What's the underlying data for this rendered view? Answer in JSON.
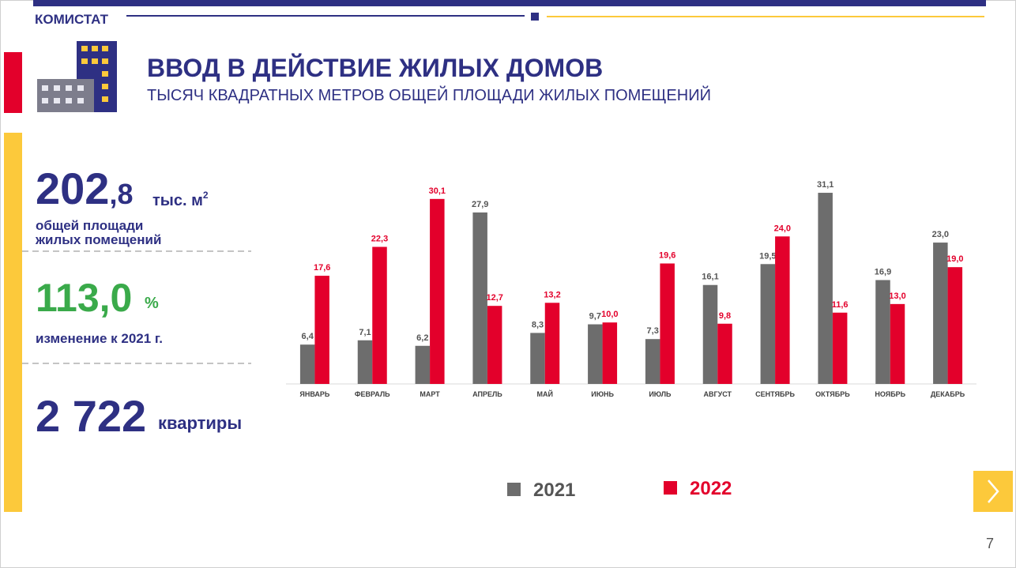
{
  "header": {
    "brand": "КОМИСТАТ",
    "title": "ВВОД В ДЕЙСТВИЕ ЖИЛЫХ ДОМОВ",
    "subtitle": "ТЫСЯЧ КВАДРАТНЫХ МЕТРОВ ОБЩЕЙ ПЛОЩАДИ ЖИЛЫХ ПОМЕЩЕНИЙ"
  },
  "kpis": [
    {
      "value": "202",
      "value_fraction": ",8",
      "unit": "тыс. м",
      "unit_sup": "2",
      "label_lines": [
        "общей площади",
        "жилых помещений"
      ]
    },
    {
      "value": "113,0",
      "unit": "%",
      "label_lines": [
        "изменение к 2021 г."
      ]
    },
    {
      "value": "2 722",
      "unit": "квартиры"
    }
  ],
  "chart_data": {
    "type": "bar",
    "categories": [
      "ЯНВАРЬ",
      "ФЕВРАЛЬ",
      "МАРТ",
      "АПРЕЛЬ",
      "МАЙ",
      "ИЮНЬ",
      "ИЮЛЬ",
      "АВГУСТ",
      "СЕНТЯБРЬ",
      "ОКТЯБРЬ",
      "НОЯБРЬ",
      "ДЕКАБРЬ"
    ],
    "series": [
      {
        "name": "2021",
        "color": "#6d6d6d",
        "values": [
          6.4,
          7.1,
          6.2,
          27.9,
          8.3,
          9.7,
          7.3,
          16.1,
          19.5,
          31.1,
          16.9,
          23.0
        ],
        "value_labels": [
          "6,4",
          "7,1",
          "6,2",
          "27,9",
          "8,3",
          "9,7",
          "7,3",
          "16,1",
          "19,5",
          "31,1",
          "16,9",
          "23,0"
        ]
      },
      {
        "name": "2022",
        "color": "#e3002b",
        "values": [
          17.6,
          22.3,
          30.1,
          12.7,
          13.2,
          10.0,
          19.6,
          9.8,
          24.0,
          11.6,
          13.0,
          19.0
        ],
        "value_labels": [
          "17,6",
          "22,3",
          "30,1",
          "12,7",
          "13,2",
          "10,0",
          "19,6",
          "9,8",
          "24,0",
          "11,6",
          "13,0",
          "19,0"
        ]
      }
    ],
    "legend": "bottom"
  },
  "page_number": "7"
}
